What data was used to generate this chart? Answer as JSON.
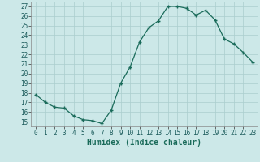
{
  "xlabel": "Humidex (Indice chaleur)",
  "x": [
    0,
    1,
    2,
    3,
    4,
    5,
    6,
    7,
    8,
    9,
    10,
    11,
    12,
    13,
    14,
    15,
    16,
    17,
    18,
    19,
    20,
    21,
    22,
    23
  ],
  "y": [
    17.8,
    17.0,
    16.5,
    16.4,
    15.6,
    15.2,
    15.1,
    14.8,
    16.2,
    19.0,
    20.7,
    23.3,
    24.8,
    25.5,
    27.0,
    27.0,
    26.8,
    26.1,
    26.6,
    25.6,
    23.6,
    23.1,
    22.2,
    21.2
  ],
  "line_color": "#1a6b5a",
  "marker": "+",
  "marker_size": 3.5,
  "bg_color": "#cce8e8",
  "grid_color": "#aacece",
  "ylim": [
    14.5,
    27.5
  ],
  "yticks": [
    15,
    16,
    17,
    18,
    19,
    20,
    21,
    22,
    23,
    24,
    25,
    26,
    27
  ],
  "xticks": [
    0,
    1,
    2,
    3,
    4,
    5,
    6,
    7,
    8,
    9,
    10,
    11,
    12,
    13,
    14,
    15,
    16,
    17,
    18,
    19,
    20,
    21,
    22,
    23
  ],
  "tick_fontsize": 5.5,
  "label_fontsize": 7
}
